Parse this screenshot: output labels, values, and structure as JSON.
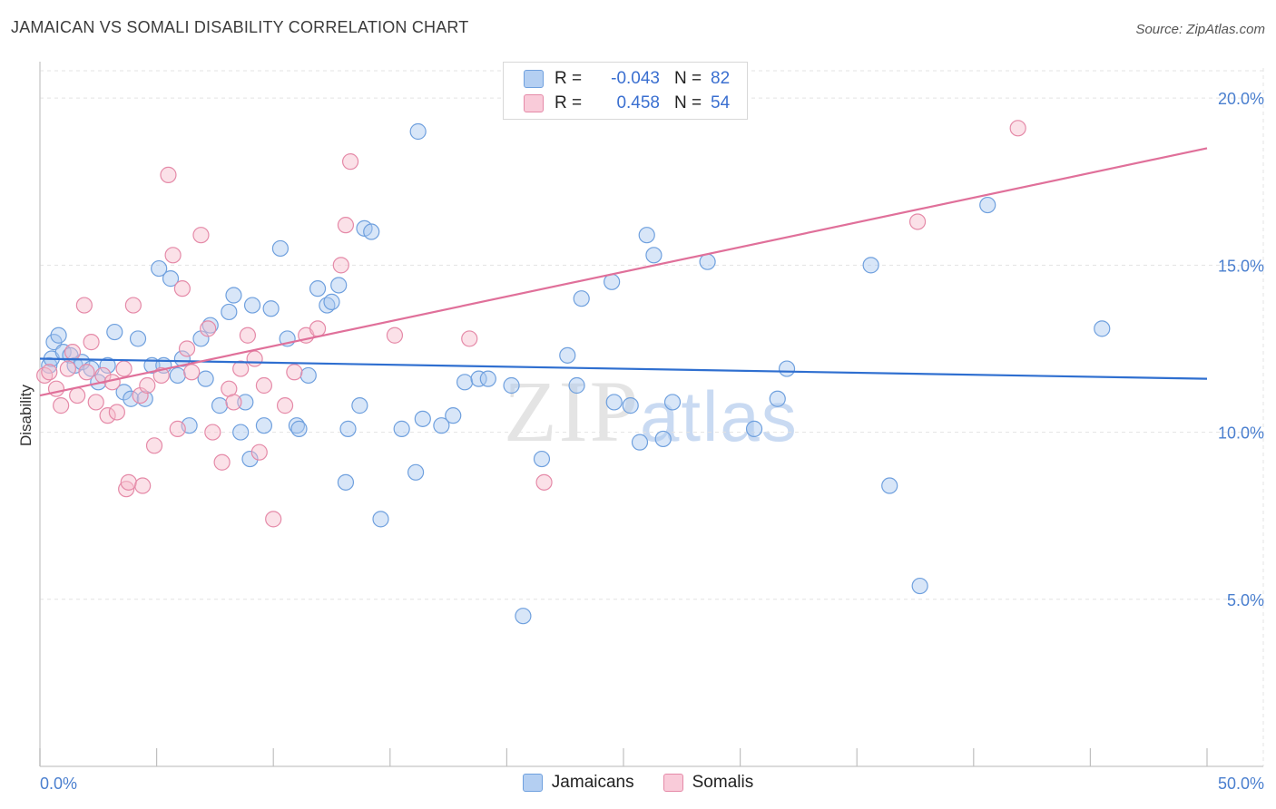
{
  "title": "JAMAICAN VS SOMALI DISABILITY CORRELATION CHART",
  "source": "Source: ZipAtlas.com",
  "watermark": {
    "zip": "ZIP",
    "atlas": "atlas"
  },
  "colors": {
    "jamaican_fill": "#a9c8f0",
    "jamaican_stroke": "#6fa0de",
    "jamaican_line": "#2f6fd0",
    "somali_fill": "#f6bccd",
    "somali_stroke": "#e58aa8",
    "somali_line": "#e0709a",
    "grid": "#e3e3e3",
    "tick_text": "#4a7fcf"
  },
  "legend": {
    "rows": [
      {
        "r_label": "R =",
        "r_value": "-0.043",
        "n_label": "N =",
        "n_value": "82"
      },
      {
        "r_label": "R =",
        "r_value": "0.458",
        "n_label": "N =",
        "n_value": "54"
      }
    ]
  },
  "bottom_legend": [
    "Jamaicans",
    "Somalis"
  ],
  "chart_data": {
    "type": "scatter",
    "title": "JAMAICAN VS SOMALI DISABILITY CORRELATION CHART",
    "ylabel": "Disability",
    "xlabel": "",
    "xlim": [
      0,
      50
    ],
    "ylim": [
      0,
      20.9
    ],
    "x_tick_labels": [
      "0.0%",
      "50.0%"
    ],
    "y_ticks": [
      5,
      10,
      15,
      20
    ],
    "y_tick_labels": [
      "5.0%",
      "10.0%",
      "15.0%",
      "20.0%"
    ],
    "grid": true,
    "series": [
      {
        "name": "Jamaicans",
        "trend": {
          "x": [
            0,
            50
          ],
          "y": [
            12.2,
            11.6
          ]
        },
        "points": [
          [
            0.4,
            12.0
          ],
          [
            0.5,
            12.2
          ],
          [
            0.6,
            12.7
          ],
          [
            0.8,
            12.9
          ],
          [
            1.0,
            12.4
          ],
          [
            1.3,
            12.3
          ],
          [
            1.5,
            12.0
          ],
          [
            1.8,
            12.1
          ],
          [
            2.2,
            11.9
          ],
          [
            2.5,
            11.5
          ],
          [
            2.9,
            12.0
          ],
          [
            3.2,
            13.0
          ],
          [
            3.6,
            11.2
          ],
          [
            3.9,
            11.0
          ],
          [
            4.2,
            12.8
          ],
          [
            4.5,
            11.0
          ],
          [
            4.8,
            12.0
          ],
          [
            5.1,
            14.9
          ],
          [
            5.3,
            12.0
          ],
          [
            5.6,
            14.6
          ],
          [
            5.9,
            11.7
          ],
          [
            6.1,
            12.2
          ],
          [
            6.4,
            10.2
          ],
          [
            6.9,
            12.8
          ],
          [
            7.1,
            11.6
          ],
          [
            7.3,
            13.2
          ],
          [
            7.7,
            10.8
          ],
          [
            8.1,
            13.6
          ],
          [
            8.3,
            14.1
          ],
          [
            8.6,
            10.0
          ],
          [
            8.8,
            10.9
          ],
          [
            9.1,
            13.8
          ],
          [
            9.6,
            10.2
          ],
          [
            9.9,
            13.7
          ],
          [
            10.3,
            15.5
          ],
          [
            10.6,
            12.8
          ],
          [
            11.0,
            10.2
          ],
          [
            11.5,
            11.7
          ],
          [
            11.9,
            14.3
          ],
          [
            12.3,
            13.8
          ],
          [
            12.5,
            13.9
          ],
          [
            12.8,
            14.4
          ],
          [
            13.2,
            10.1
          ],
          [
            13.7,
            10.8
          ],
          [
            13.9,
            16.1
          ],
          [
            14.2,
            16.0
          ],
          [
            14.6,
            7.4
          ],
          [
            15.5,
            10.1
          ],
          [
            16.1,
            8.8
          ],
          [
            16.2,
            19.0
          ],
          [
            16.4,
            10.4
          ],
          [
            17.2,
            10.2
          ],
          [
            17.7,
            10.5
          ],
          [
            18.2,
            11.5
          ],
          [
            18.8,
            11.6
          ],
          [
            19.2,
            11.6
          ],
          [
            20.2,
            11.4
          ],
          [
            20.7,
            4.5
          ],
          [
            21.5,
            9.2
          ],
          [
            22.6,
            12.3
          ],
          [
            23.0,
            11.4
          ],
          [
            23.2,
            14.0
          ],
          [
            24.5,
            14.5
          ],
          [
            24.6,
            10.9
          ],
          [
            25.3,
            10.8
          ],
          [
            25.7,
            9.7
          ],
          [
            26.0,
            15.9
          ],
          [
            26.3,
            15.3
          ],
          [
            26.7,
            9.8
          ],
          [
            27.1,
            10.9
          ],
          [
            28.6,
            15.1
          ],
          [
            30.6,
            10.1
          ],
          [
            31.6,
            11.0
          ],
          [
            32.0,
            11.9
          ],
          [
            35.6,
            15.0
          ],
          [
            36.4,
            8.4
          ],
          [
            37.7,
            5.4
          ],
          [
            40.6,
            16.8
          ],
          [
            45.5,
            13.1
          ],
          [
            9.0,
            9.2
          ],
          [
            11.1,
            10.1
          ],
          [
            13.1,
            8.5
          ]
        ]
      },
      {
        "name": "Somalis",
        "trend": {
          "x": [
            0,
            50
          ],
          "y": [
            11.1,
            18.5
          ]
        },
        "points": [
          [
            0.2,
            11.7
          ],
          [
            0.4,
            11.8
          ],
          [
            0.7,
            11.3
          ],
          [
            0.9,
            10.8
          ],
          [
            1.2,
            11.9
          ],
          [
            1.4,
            12.4
          ],
          [
            1.6,
            11.1
          ],
          [
            1.9,
            13.8
          ],
          [
            2.0,
            11.8
          ],
          [
            2.2,
            12.7
          ],
          [
            2.4,
            10.9
          ],
          [
            2.7,
            11.7
          ],
          [
            2.9,
            10.5
          ],
          [
            3.1,
            11.5
          ],
          [
            3.3,
            10.6
          ],
          [
            3.6,
            11.9
          ],
          [
            3.7,
            8.3
          ],
          [
            3.8,
            8.5
          ],
          [
            4.0,
            13.8
          ],
          [
            4.3,
            11.1
          ],
          [
            4.4,
            8.4
          ],
          [
            4.6,
            11.4
          ],
          [
            4.9,
            9.6
          ],
          [
            5.2,
            11.7
          ],
          [
            5.5,
            17.7
          ],
          [
            5.7,
            15.3
          ],
          [
            5.9,
            10.1
          ],
          [
            6.1,
            14.3
          ],
          [
            6.3,
            12.5
          ],
          [
            6.5,
            11.8
          ],
          [
            6.9,
            15.9
          ],
          [
            7.2,
            13.1
          ],
          [
            7.4,
            10.0
          ],
          [
            7.8,
            9.1
          ],
          [
            8.1,
            11.3
          ],
          [
            8.3,
            10.9
          ],
          [
            8.6,
            11.9
          ],
          [
            8.9,
            12.9
          ],
          [
            9.2,
            12.2
          ],
          [
            9.4,
            9.4
          ],
          [
            9.6,
            11.4
          ],
          [
            10.0,
            7.4
          ],
          [
            10.5,
            10.8
          ],
          [
            10.9,
            11.8
          ],
          [
            11.4,
            12.9
          ],
          [
            11.9,
            13.1
          ],
          [
            12.9,
            15.0
          ],
          [
            13.1,
            16.2
          ],
          [
            13.3,
            18.1
          ],
          [
            15.2,
            12.9
          ],
          [
            18.4,
            12.8
          ],
          [
            21.6,
            8.5
          ],
          [
            37.6,
            16.3
          ],
          [
            41.9,
            19.1
          ]
        ]
      }
    ]
  }
}
